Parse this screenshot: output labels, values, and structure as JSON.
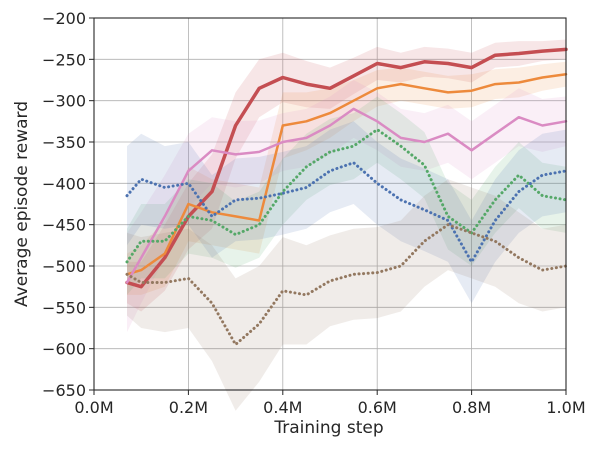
{
  "chart_data": {
    "type": "line",
    "title": "",
    "xlabel": "Training step",
    "ylabel": "Average episode reward",
    "xlim": [
      0,
      1000000
    ],
    "ylim": [
      -650,
      -200
    ],
    "x_ticks": [
      0,
      200000,
      400000,
      600000,
      800000,
      1000000
    ],
    "x_tick_labels": [
      "0.0M",
      "0.2M",
      "0.4M",
      "0.6M",
      "0.8M",
      "1.0M"
    ],
    "y_ticks": [
      -650,
      -600,
      -550,
      -500,
      -450,
      -400,
      -350,
      -300,
      -250,
      -200
    ],
    "y_tick_labels": [
      "−650",
      "−600",
      "−550",
      "−500",
      "−450",
      "−400",
      "−350",
      "−300",
      "−250",
      "−200"
    ],
    "grid": true,
    "x": [
      70000,
      100000,
      150000,
      200000,
      250000,
      300000,
      350000,
      400000,
      450000,
      500000,
      550000,
      600000,
      650000,
      700000,
      750000,
      800000,
      850000,
      900000,
      950000,
      1000000
    ],
    "series": [
      {
        "color": "#c44e52",
        "style": "solid",
        "values": [
          -520,
          -525,
          -490,
          -440,
          -410,
          -330,
          -285,
          -272,
          -280,
          -285,
          -270,
          -255,
          -260,
          -253,
          -255,
          -260,
          -245,
          -243,
          -240,
          -238
        ],
        "band": [
          25,
          30,
          40,
          40,
          45,
          40,
          35,
          30,
          28,
          25,
          22,
          20,
          18,
          18,
          18,
          18,
          15,
          15,
          12,
          12
        ]
      },
      {
        "color": "#ed8a3c",
        "style": "solid",
        "values": [
          -510,
          -505,
          -485,
          -425,
          -435,
          -440,
          -445,
          -330,
          -325,
          -315,
          -300,
          -285,
          -280,
          -285,
          -290,
          -288,
          -280,
          -278,
          -272,
          -268
        ],
        "band": [
          25,
          30,
          40,
          45,
          40,
          40,
          40,
          40,
          35,
          30,
          25,
          22,
          20,
          20,
          20,
          20,
          18,
          18,
          16,
          15
        ]
      },
      {
        "color": "#da8bc3",
        "style": "solid",
        "values": [
          -520,
          -490,
          -440,
          -385,
          -360,
          -365,
          -362,
          -350,
          -345,
          -330,
          -310,
          -325,
          -345,
          -350,
          -340,
          -360,
          -340,
          -320,
          -330,
          -325
        ],
        "band": [
          60,
          55,
          50,
          45,
          40,
          40,
          38,
          35,
          35,
          35,
          35,
          35,
          35,
          35,
          35,
          35,
          35,
          35,
          32,
          30
        ]
      },
      {
        "color": "#55a868",
        "style": "dotted",
        "values": [
          -495,
          -470,
          -470,
          -440,
          -445,
          -462,
          -450,
          -410,
          -380,
          -362,
          -355,
          -335,
          -355,
          -378,
          -440,
          -460,
          -420,
          -390,
          -415,
          -420
        ],
        "band": [
          40,
          45,
          45,
          45,
          45,
          40,
          40,
          40,
          40,
          40,
          40,
          40,
          40,
          40,
          40,
          40,
          40,
          40,
          40,
          40
        ]
      },
      {
        "color": "#4c72b0",
        "style": "dotted",
        "values": [
          -415,
          -395,
          -405,
          -400,
          -440,
          -420,
          -418,
          -412,
          -405,
          -385,
          -375,
          -400,
          -420,
          -432,
          -445,
          -495,
          -445,
          -410,
          -390,
          -385
        ],
        "band": [
          60,
          55,
          50,
          50,
          50,
          50,
          50,
          50,
          50,
          50,
          50,
          50,
          50,
          50,
          50,
          50,
          50,
          50,
          50,
          50
        ]
      },
      {
        "color": "#937860",
        "style": "dotted",
        "values": [
          -510,
          -520,
          -520,
          -515,
          -545,
          -595,
          -570,
          -530,
          -535,
          -518,
          -510,
          -508,
          -500,
          -470,
          -450,
          -460,
          -470,
          -490,
          -505,
          -500
        ],
        "band": [
          50,
          55,
          60,
          60,
          70,
          80,
          70,
          65,
          60,
          55,
          55,
          55,
          55,
          55,
          55,
          55,
          55,
          55,
          50,
          50
        ]
      }
    ]
  }
}
